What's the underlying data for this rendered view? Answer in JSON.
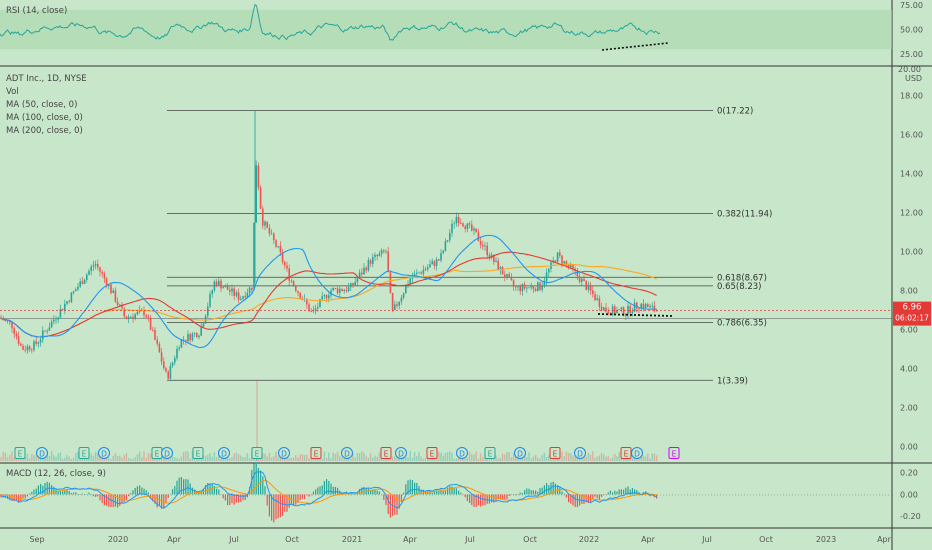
{
  "chart_data": [
    {
      "type": "line",
      "name": "rsi-panel",
      "title": "RSI (14, close)",
      "yticks": [
        75.0,
        50.0,
        25.0
      ],
      "ylim": [
        15,
        80
      ],
      "band": [
        30,
        70
      ]
    },
    {
      "type": "candlestick",
      "name": "price-panel",
      "title": "ADT Inc., 1D, NYSE",
      "legend": [
        "Vol",
        "MA (50, close, 0)",
        "MA (100, close, 0)",
        "MA (200, close, 0)"
      ],
      "ylabel": "USD",
      "ylim": [
        -0.8,
        19.5
      ],
      "yticks": [
        18.0,
        16.0,
        14.0,
        12.0,
        10.0,
        8.0,
        6.0,
        4.0,
        2.0,
        0.0
      ],
      "current_price": "6.96",
      "countdown": "06:02:17",
      "top_cut_label": "20.00",
      "fib_levels": [
        {
          "label": "0(17.22)",
          "value": 17.22
        },
        {
          "label": "0.382(11.94)",
          "value": 11.94
        },
        {
          "label": "0.618(8.67)",
          "value": 8.67
        },
        {
          "label": "0.65(8.23)",
          "value": 8.23
        },
        {
          "label": "0.786(6.35)",
          "value": 6.35
        },
        {
          "label": "1(3.39)",
          "value": 3.39
        }
      ],
      "events": [
        "E",
        "D",
        "E",
        "D",
        "E",
        "D",
        "E",
        "D",
        "E",
        "D",
        "E",
        "D",
        "E",
        "D",
        "E",
        "D",
        "E",
        "D",
        "E",
        "D",
        "E",
        "D",
        "E",
        "D",
        "E"
      ],
      "series_colors": {
        "ma50": "#2196f3",
        "ma100": "#e53935",
        "ma200": "#f9a825",
        "up": "#26a69a",
        "down": "#ef5350"
      }
    },
    {
      "type": "histogram",
      "name": "macd-panel",
      "title": "MACD (12, 26, close, 9)",
      "yticks": [
        0.2,
        0.0,
        -0.2
      ],
      "ylim": [
        -0.3,
        0.28
      ]
    }
  ],
  "x_axis": {
    "ticks": [
      "Sep",
      "2020",
      "Apr",
      "Jul",
      "Oct",
      "2021",
      "Apr",
      "Jul",
      "Oct",
      "2022",
      "Apr",
      "Jul",
      "Oct",
      "2023",
      "Apr"
    ]
  }
}
